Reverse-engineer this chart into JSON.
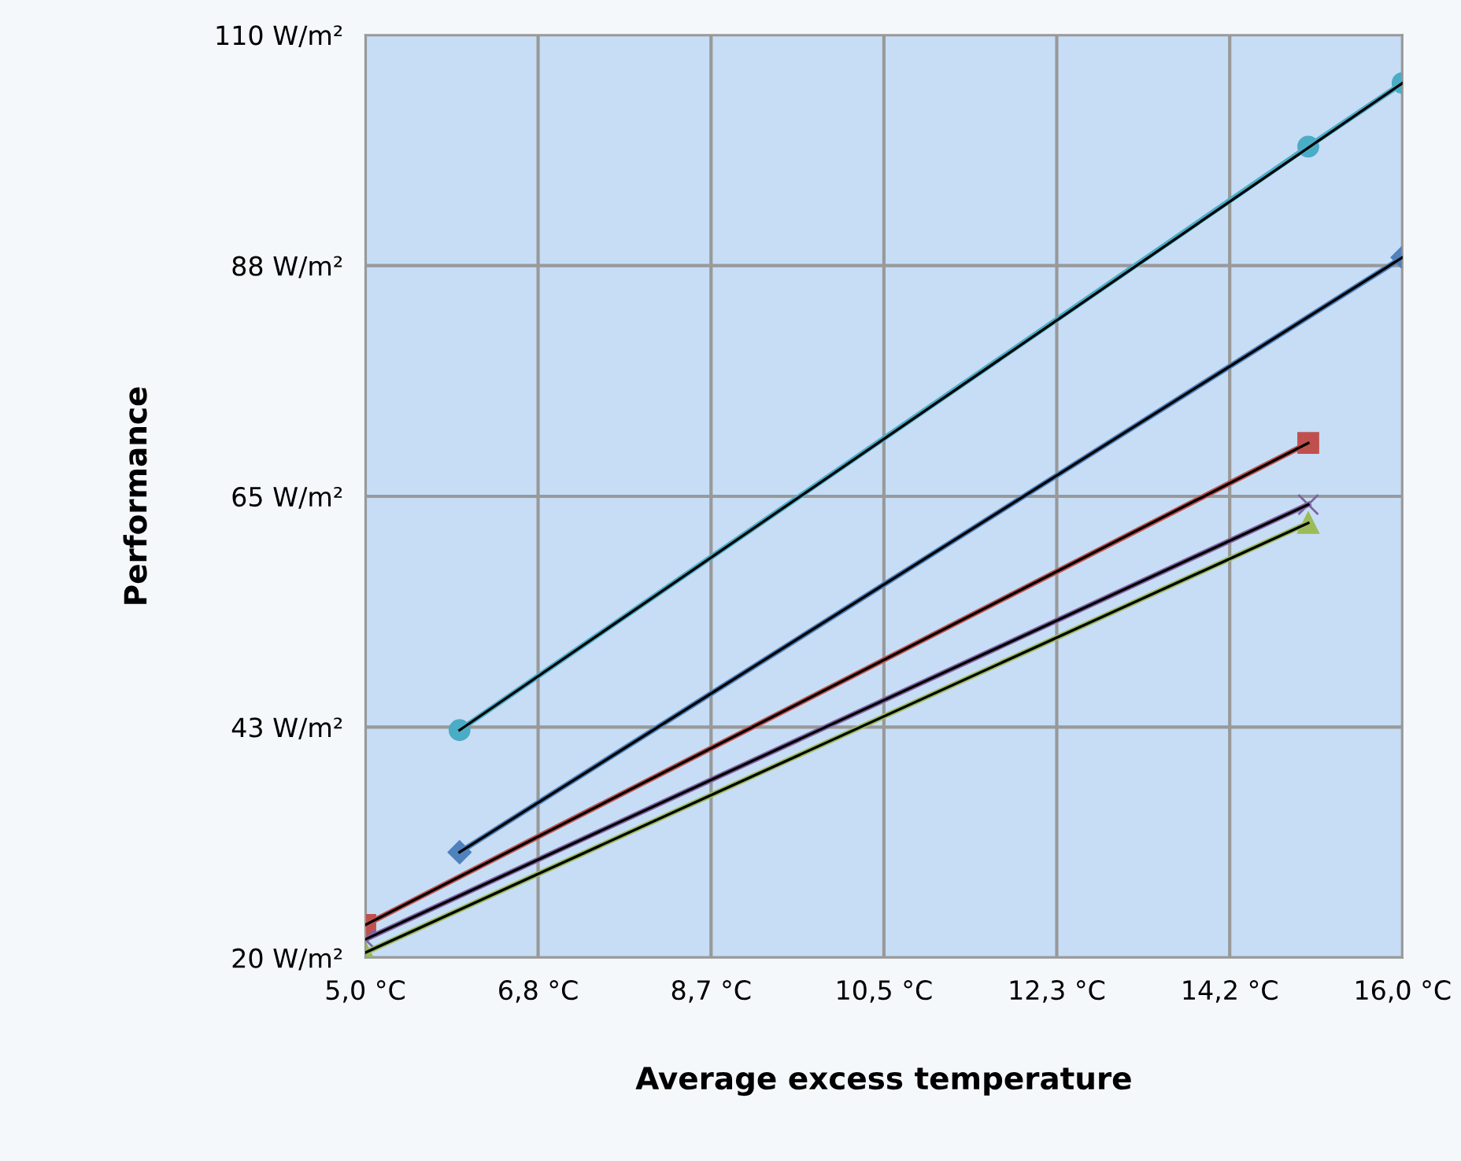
{
  "chart_data": {
    "type": "line",
    "xlabel": "Average excess temperature",
    "ylabel": "Performance",
    "xlim": [
      5.0,
      16.0
    ],
    "ylim": [
      20,
      110
    ],
    "xticks": [
      {
        "value": 5.0,
        "label": "5,0 °C"
      },
      {
        "value": 6.833,
        "label": "6,8 °C"
      },
      {
        "value": 8.667,
        "label": "8,7 °C"
      },
      {
        "value": 10.5,
        "label": "10,5 °C"
      },
      {
        "value": 12.333,
        "label": "12,3 °C"
      },
      {
        "value": 14.167,
        "label": "14,2 °C"
      },
      {
        "value": 16.0,
        "label": "16,0 °C"
      }
    ],
    "yticks": [
      {
        "value": 20,
        "label": "20 W/m²"
      },
      {
        "value": 42.5,
        "label": "43 W/m²"
      },
      {
        "value": 65,
        "label": "65 W/m²"
      },
      {
        "value": 87.5,
        "label": "88 W/m²"
      },
      {
        "value": 110,
        "label": "110 W/m²"
      }
    ],
    "grid": true,
    "legend": false,
    "series": [
      {
        "color": "#4bacc6",
        "marker": "circle",
        "x": [
          6.0,
          15.0,
          16.0
        ],
        "values": [
          42.2,
          99.1,
          105.3
        ]
      },
      {
        "color": "#4f81bd",
        "marker": "diamond",
        "x": [
          6.0,
          16.0
        ],
        "values": [
          30.3,
          88.3
        ]
      },
      {
        "color": "#c0504d",
        "marker": "square",
        "x": [
          5.0,
          15.0
        ],
        "values": [
          23.2,
          70.2
        ]
      },
      {
        "color": "#8064a2",
        "marker": "cross",
        "x": [
          5.0,
          15.0
        ],
        "values": [
          21.8,
          64.2
        ]
      },
      {
        "color": "#9bbb59",
        "marker": "triangle",
        "x": [
          5.0,
          15.0
        ],
        "values": [
          20.5,
          62.4
        ]
      },
      {
        "color": "#000000",
        "marker": "none",
        "x": [
          6.0,
          16.0
        ],
        "values": [
          42.2,
          105.3
        ]
      },
      {
        "color": "#000000",
        "marker": "none",
        "x": [
          6.0,
          16.0
        ],
        "values": [
          30.3,
          88.3
        ]
      },
      {
        "color": "#000000",
        "marker": "none",
        "x": [
          5.0,
          15.0
        ],
        "values": [
          23.2,
          70.2
        ]
      },
      {
        "color": "#000000",
        "marker": "none",
        "x": [
          5.0,
          15.0
        ],
        "values": [
          21.8,
          64.2
        ]
      },
      {
        "color": "#000000",
        "marker": "none",
        "x": [
          5.0,
          15.0
        ],
        "values": [
          20.5,
          62.4
        ]
      }
    ]
  }
}
